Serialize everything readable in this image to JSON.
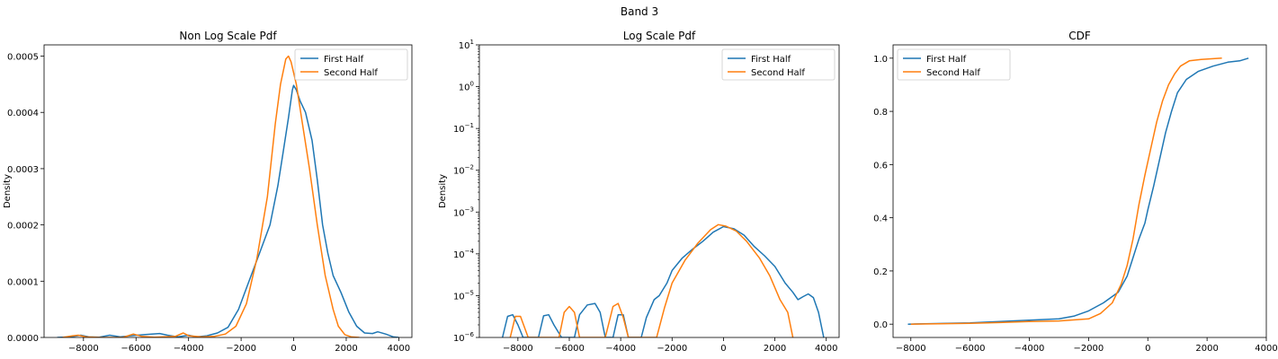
{
  "suptitle": "Band 3",
  "colors": {
    "first": "#1f77b4",
    "second": "#ff7f0e"
  },
  "chart_data": [
    {
      "type": "line",
      "title": "Non Log Scale Pdf",
      "xlabel": "",
      "ylabel": "Density",
      "xlim": [
        -9500,
        4500
      ],
      "ylim": [
        0,
        0.00052
      ],
      "xticks": [
        -8000,
        -6000,
        -4000,
        -2000,
        0,
        2000,
        4000
      ],
      "xtick_labels": [
        "−8000",
        "−6000",
        "−4000",
        "−2000",
        "0",
        "2000",
        "4000"
      ],
      "yticks": [
        0,
        0.0001,
        0.0002,
        0.0003,
        0.0004,
        0.0005
      ],
      "ytick_labels": [
        "0.0000",
        "0.0001",
        "0.0002",
        "0.0003",
        "0.0004",
        "0.0005"
      ],
      "legend": "top-right",
      "series": [
        {
          "name": "First Half",
          "points": [
            [
              -9000,
              0
            ],
            [
              -8500,
              1e-06
            ],
            [
              -8100,
              4e-06
            ],
            [
              -7800,
              1e-06
            ],
            [
              -7400,
              5e-07
            ],
            [
              -7000,
              4e-06
            ],
            [
              -6600,
              1e-06
            ],
            [
              -6200,
              3e-06
            ],
            [
              -5700,
              5e-06
            ],
            [
              -5100,
              7e-06
            ],
            [
              -4800,
              4e-06
            ],
            [
              -4400,
              1e-06
            ],
            [
              -4000,
              4e-06
            ],
            [
              -3700,
              1e-06
            ],
            [
              -3300,
              3e-06
            ],
            [
              -2900,
              8e-06
            ],
            [
              -2500,
              1.8e-05
            ],
            [
              -2100,
              5e-05
            ],
            [
              -1700,
              0.0001
            ],
            [
              -1300,
              0.00015
            ],
            [
              -900,
              0.0002
            ],
            [
              -600,
              0.00027
            ],
            [
              -400,
              0.00033
            ],
            [
              -200,
              0.00039
            ],
            [
              -50,
              0.00044
            ],
            [
              0,
              0.000448
            ],
            [
              100,
              0.00044
            ],
            [
              250,
              0.00042
            ],
            [
              450,
              0.0004
            ],
            [
              700,
              0.00035
            ],
            [
              900,
              0.00028
            ],
            [
              1100,
              0.0002
            ],
            [
              1300,
              0.00015
            ],
            [
              1500,
              0.00011
            ],
            [
              1800,
              8e-05
            ],
            [
              2100,
              4.5e-05
            ],
            [
              2400,
              2e-05
            ],
            [
              2700,
              8e-06
            ],
            [
              3000,
              7e-06
            ],
            [
              3200,
              1e-05
            ],
            [
              3500,
              6e-06
            ],
            [
              3800,
              1e-06
            ],
            [
              4000,
              0
            ]
          ]
        },
        {
          "name": "Second Half",
          "points": [
            [
              -8800,
              0
            ],
            [
              -8400,
              3e-06
            ],
            [
              -8200,
              4e-06
            ],
            [
              -7900,
              1e-06
            ],
            [
              -7400,
              0
            ],
            [
              -6500,
              0
            ],
            [
              -6100,
              6e-06
            ],
            [
              -5800,
              2e-06
            ],
            [
              -5300,
              5e-07
            ],
            [
              -4500,
              2e-06
            ],
            [
              -4200,
              8e-06
            ],
            [
              -4000,
              3e-06
            ],
            [
              -3500,
              1e-06
            ],
            [
              -3000,
              2e-06
            ],
            [
              -2600,
              6e-06
            ],
            [
              -2200,
              2e-05
            ],
            [
              -1800,
              6e-05
            ],
            [
              -1400,
              0.00014
            ],
            [
              -1000,
              0.00025
            ],
            [
              -700,
              0.00038
            ],
            [
              -500,
              0.00045
            ],
            [
              -300,
              0.000495
            ],
            [
              -200,
              0.0005
            ],
            [
              -100,
              0.00049
            ],
            [
              100,
              0.00045
            ],
            [
              300,
              0.00039
            ],
            [
              600,
              0.0003
            ],
            [
              900,
              0.0002
            ],
            [
              1200,
              0.00011
            ],
            [
              1500,
              5e-05
            ],
            [
              1700,
              2e-05
            ],
            [
              1950,
              5e-06
            ],
            [
              2200,
              1e-06
            ],
            [
              2500,
              0
            ]
          ]
        }
      ]
    },
    {
      "type": "line",
      "title": "Log Scale Pdf",
      "xlabel": "",
      "ylabel": "Density",
      "yscale": "log",
      "xlim": [
        -9500,
        4500
      ],
      "ylim": [
        1e-06,
        10
      ],
      "xticks": [
        -8000,
        -6000,
        -4000,
        -2000,
        0,
        2000,
        4000
      ],
      "xtick_labels": [
        "−8000",
        "−6000",
        "−4000",
        "−2000",
        "0",
        "2000",
        "4000"
      ],
      "ytick_exponents": [
        -6,
        -5,
        -4,
        -3,
        -2,
        -1,
        0,
        1
      ],
      "legend": "top-right",
      "series": [
        {
          "name": "First Half",
          "points": [
            [
              -8600,
              1e-06
            ],
            [
              -8400,
              3.2e-06
            ],
            [
              -8200,
              3.5e-06
            ],
            [
              -8000,
              2e-06
            ],
            [
              -7800,
              1e-06
            ],
            [
              -7200,
              1e-06
            ],
            [
              -7000,
              3.3e-06
            ],
            [
              -6800,
              3.5e-06
            ],
            [
              -6600,
              2e-06
            ],
            [
              -6300,
              1e-06
            ],
            [
              -5800,
              1e-06
            ],
            [
              -5600,
              3.5e-06
            ],
            [
              -5300,
              6e-06
            ],
            [
              -5000,
              6.5e-06
            ],
            [
              -4800,
              4e-06
            ],
            [
              -4600,
              1e-06
            ],
            [
              -4300,
              1e-06
            ],
            [
              -4100,
              3.5e-06
            ],
            [
              -3900,
              3.5e-06
            ],
            [
              -3700,
              1e-06
            ],
            [
              -3200,
              1e-06
            ],
            [
              -3000,
              3e-06
            ],
            [
              -2700,
              8e-06
            ],
            [
              -2500,
              1e-05
            ],
            [
              -2200,
              2e-05
            ],
            [
              -2000,
              4e-05
            ],
            [
              -1600,
              8e-05
            ],
            [
              -1200,
              0.00013
            ],
            [
              -800,
              0.0002
            ],
            [
              -400,
              0.00033
            ],
            [
              0,
              0.000448
            ],
            [
              400,
              0.0004
            ],
            [
              800,
              0.00028
            ],
            [
              1200,
              0.00015
            ],
            [
              1600,
              9e-05
            ],
            [
              2000,
              5e-05
            ],
            [
              2400,
              2e-05
            ],
            [
              2700,
              1.2e-05
            ],
            [
              2900,
              8e-06
            ],
            [
              3100,
              9.5e-06
            ],
            [
              3300,
              1.1e-05
            ],
            [
              3500,
              9e-06
            ],
            [
              3700,
              4e-06
            ],
            [
              3900,
              1e-06
            ]
          ]
        },
        {
          "name": "Second Half",
          "points": [
            [
              -8300,
              1e-06
            ],
            [
              -8100,
              3.2e-06
            ],
            [
              -7900,
              3.2e-06
            ],
            [
              -7600,
              1e-06
            ],
            [
              -6400,
              1e-06
            ],
            [
              -6200,
              4e-06
            ],
            [
              -6000,
              5.5e-06
            ],
            [
              -5800,
              4e-06
            ],
            [
              -5600,
              1e-06
            ],
            [
              -4600,
              1e-06
            ],
            [
              -4300,
              5.5e-06
            ],
            [
              -4100,
              6.5e-06
            ],
            [
              -3900,
              3e-06
            ],
            [
              -3700,
              1e-06
            ],
            [
              -2600,
              1e-06
            ],
            [
              -2300,
              5e-06
            ],
            [
              -2000,
              2e-05
            ],
            [
              -1500,
              7e-05
            ],
            [
              -1000,
              0.00018
            ],
            [
              -500,
              0.00038
            ],
            [
              -200,
              0.0005
            ],
            [
              100,
              0.00046
            ],
            [
              500,
              0.00035
            ],
            [
              900,
              0.0002
            ],
            [
              1400,
              8e-05
            ],
            [
              1800,
              3e-05
            ],
            [
              2200,
              8e-06
            ],
            [
              2500,
              4e-06
            ],
            [
              2700,
              1e-06
            ]
          ]
        }
      ]
    },
    {
      "type": "line",
      "title": "CDF",
      "xlabel": "",
      "ylabel": "",
      "xlim": [
        -8600,
        4000
      ],
      "ylim": [
        -0.05,
        1.05
      ],
      "xticks": [
        -8000,
        -6000,
        -4000,
        -2000,
        0,
        2000,
        4000
      ],
      "xtick_labels": [
        "−8000",
        "−6000",
        "−4000",
        "−2000",
        "0",
        "2000",
        "4000"
      ],
      "yticks": [
        0,
        0.2,
        0.4,
        0.6,
        0.8,
        1.0
      ],
      "ytick_labels": [
        "0.0",
        "0.2",
        "0.4",
        "0.6",
        "0.8",
        "1.0"
      ],
      "legend": "top-left",
      "series": [
        {
          "name": "First Half",
          "points": [
            [
              -8100,
              0
            ],
            [
              -6000,
              0.005
            ],
            [
              -5000,
              0.01
            ],
            [
              -4000,
              0.015
            ],
            [
              -3000,
              0.02
            ],
            [
              -2500,
              0.03
            ],
            [
              -2000,
              0.05
            ],
            [
              -1500,
              0.08
            ],
            [
              -1000,
              0.12
            ],
            [
              -700,
              0.18
            ],
            [
              -500,
              0.25
            ],
            [
              -300,
              0.32
            ],
            [
              -100,
              0.38
            ],
            [
              0,
              0.43
            ],
            [
              200,
              0.52
            ],
            [
              400,
              0.62
            ],
            [
              600,
              0.72
            ],
            [
              800,
              0.8
            ],
            [
              1000,
              0.87
            ],
            [
              1300,
              0.92
            ],
            [
              1700,
              0.95
            ],
            [
              2200,
              0.97
            ],
            [
              2700,
              0.985
            ],
            [
              3100,
              0.99
            ],
            [
              3400,
              1.0
            ]
          ]
        },
        {
          "name": "Second Half",
          "points": [
            [
              -8000,
              0
            ],
            [
              -6000,
              0.003
            ],
            [
              -5000,
              0.006
            ],
            [
              -4000,
              0.01
            ],
            [
              -3000,
              0.012
            ],
            [
              -2000,
              0.02
            ],
            [
              -1600,
              0.04
            ],
            [
              -1200,
              0.08
            ],
            [
              -900,
              0.15
            ],
            [
              -700,
              0.22
            ],
            [
              -500,
              0.32
            ],
            [
              -300,
              0.45
            ],
            [
              -100,
              0.56
            ],
            [
              100,
              0.66
            ],
            [
              300,
              0.76
            ],
            [
              500,
              0.84
            ],
            [
              700,
              0.9
            ],
            [
              900,
              0.94
            ],
            [
              1100,
              0.97
            ],
            [
              1400,
              0.99
            ],
            [
              1800,
              0.995
            ],
            [
              2500,
              1.0
            ]
          ]
        }
      ]
    }
  ]
}
